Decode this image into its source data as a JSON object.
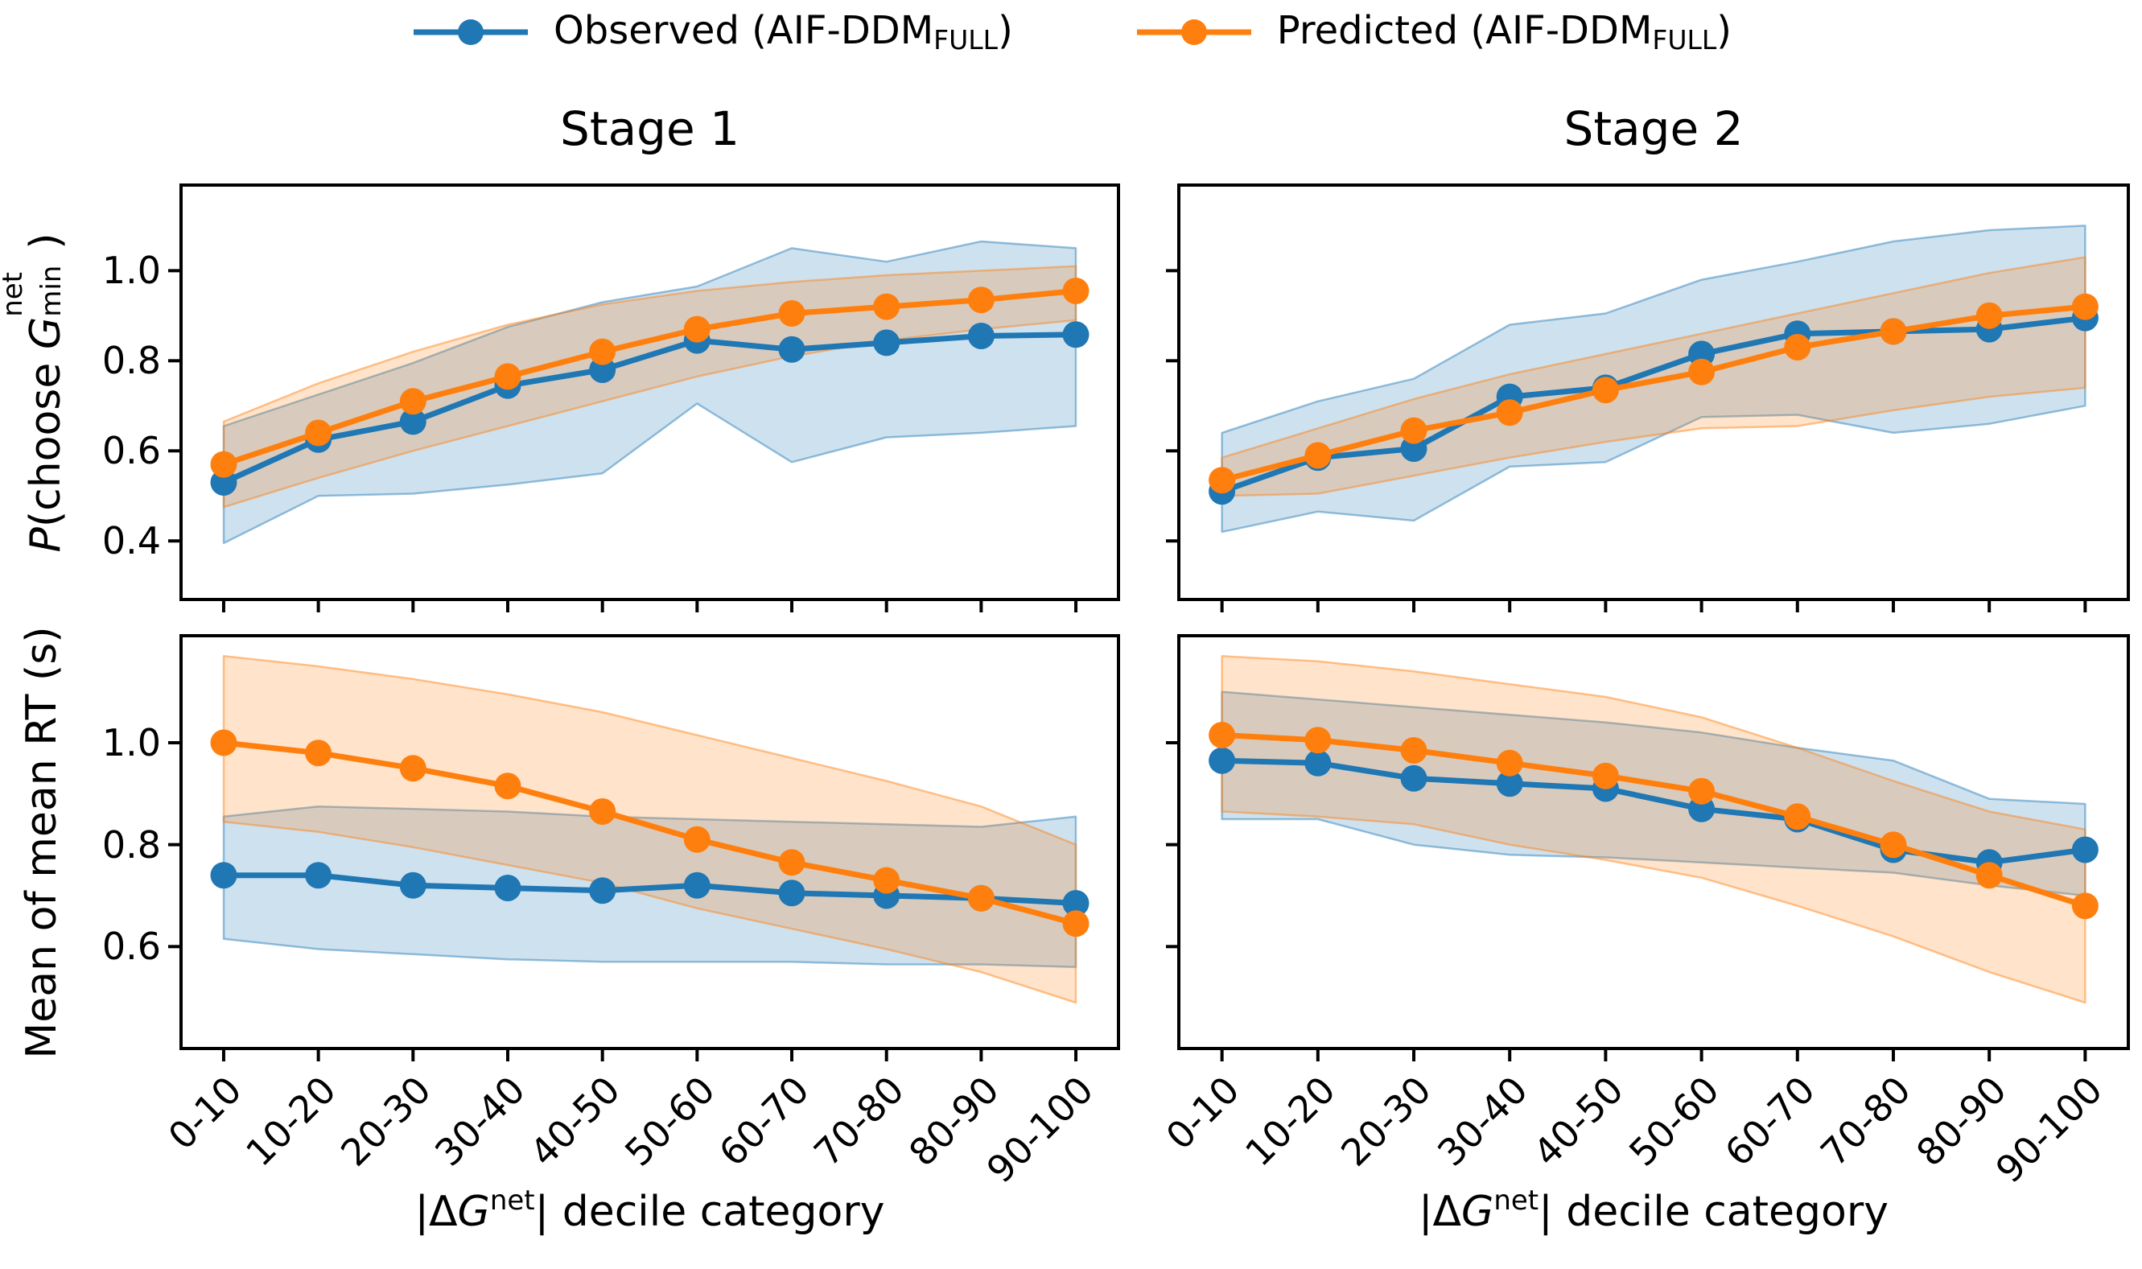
{
  "figure": {
    "background": "#ffffff"
  },
  "colors": {
    "observed": "#1f77b4",
    "predicted": "#ff7f0e",
    "band_fill_opacity": 0.22,
    "band_edge_opacity": 0.45,
    "axis": "#000000",
    "text": "#000000"
  },
  "legend": {
    "items": [
      {
        "name": "observed",
        "label_main": "Observed (AIF-DDM",
        "label_sub": "FULL",
        "label_end": ")"
      },
      {
        "name": "predicted",
        "label_main": "Predicted (AIF-DDM",
        "label_sub": "FULL",
        "label_end": ")"
      }
    ]
  },
  "labels": {
    "ylabel_top": {
      "p_var": "P",
      "mid": "(choose ",
      "g_var": "G",
      "sup": "net",
      "sub": "min",
      "end": ")"
    },
    "ylabel_bottom": "Mean of mean RT (s)",
    "xlabel": {
      "pre": "|Δ",
      "g_var": "G",
      "sup": "net",
      "post": "| decile category"
    }
  },
  "chart_data": [
    {
      "id": "s1top",
      "type": "line",
      "title": "Stage 1",
      "xlabel": "|ΔG^net| decile category",
      "ylabel": "P(choose G^net_min)",
      "categories": [
        "0-10",
        "10-20",
        "20-30",
        "30-40",
        "40-50",
        "50-60",
        "60-70",
        "70-80",
        "80-90",
        "90-100"
      ],
      "ylim": [
        0.27,
        1.19
      ],
      "yticks": [
        0.4,
        0.6,
        0.8,
        1.0
      ],
      "ytick_labels": [
        "0.4",
        "0.6",
        "0.8",
        "1.0"
      ],
      "show_ytick_labels": true,
      "show_xtick_labels": false,
      "grid": false,
      "series": [
        {
          "name": "Observed (AIF-DDM_FULL)",
          "color": "#1f77b4",
          "values": [
            0.53,
            0.625,
            0.665,
            0.745,
            0.78,
            0.845,
            0.825,
            0.84,
            0.855,
            0.858
          ],
          "band_lower": [
            0.395,
            0.5,
            0.505,
            0.525,
            0.55,
            0.705,
            0.575,
            0.63,
            0.64,
            0.655
          ],
          "band_upper": [
            0.655,
            0.725,
            0.795,
            0.875,
            0.93,
            0.965,
            1.05,
            1.02,
            1.065,
            1.05
          ]
        },
        {
          "name": "Predicted (AIF-DDM_FULL)",
          "color": "#ff7f0e",
          "values": [
            0.57,
            0.64,
            0.71,
            0.765,
            0.82,
            0.87,
            0.905,
            0.92,
            0.935,
            0.955
          ],
          "band_lower": [
            0.475,
            0.54,
            0.6,
            0.655,
            0.71,
            0.765,
            0.81,
            0.845,
            0.87,
            0.89
          ],
          "band_upper": [
            0.665,
            0.75,
            0.82,
            0.88,
            0.925,
            0.955,
            0.975,
            0.99,
            1.0,
            1.01
          ]
        }
      ]
    },
    {
      "id": "s2top",
      "type": "line",
      "title": "Stage 2",
      "xlabel": "|ΔG^net| decile category",
      "ylabel": "P(choose G^net_min)",
      "categories": [
        "0-10",
        "10-20",
        "20-30",
        "30-40",
        "40-50",
        "50-60",
        "60-70",
        "70-80",
        "80-90",
        "90-100"
      ],
      "ylim": [
        0.27,
        1.19
      ],
      "yticks": [
        0.4,
        0.6,
        0.8,
        1.0
      ],
      "ytick_labels": [],
      "show_ytick_labels": false,
      "show_xtick_labels": false,
      "grid": false,
      "series": [
        {
          "name": "Observed (AIF-DDM_FULL)",
          "color": "#1f77b4",
          "values": [
            0.51,
            0.585,
            0.605,
            0.72,
            0.74,
            0.815,
            0.86,
            0.865,
            0.87,
            0.895
          ],
          "band_lower": [
            0.42,
            0.465,
            0.445,
            0.565,
            0.575,
            0.675,
            0.68,
            0.64,
            0.66,
            0.7
          ],
          "band_upper": [
            0.64,
            0.71,
            0.76,
            0.88,
            0.905,
            0.98,
            1.02,
            1.065,
            1.09,
            1.1
          ]
        },
        {
          "name": "Predicted (AIF-DDM_FULL)",
          "color": "#ff7f0e",
          "values": [
            0.535,
            0.59,
            0.645,
            0.685,
            0.735,
            0.775,
            0.83,
            0.865,
            0.9,
            0.92
          ],
          "band_lower": [
            0.5,
            0.505,
            0.545,
            0.585,
            0.62,
            0.65,
            0.655,
            0.69,
            0.72,
            0.74
          ],
          "band_upper": [
            0.585,
            0.65,
            0.715,
            0.77,
            0.815,
            0.86,
            0.905,
            0.95,
            0.995,
            1.03
          ]
        }
      ]
    },
    {
      "id": "s1rt",
      "type": "line",
      "title": "Stage 1",
      "xlabel": "|ΔG^net| decile category",
      "ylabel": "Mean of mean RT (s)",
      "categories": [
        "0-10",
        "10-20",
        "20-30",
        "30-40",
        "40-50",
        "50-60",
        "60-70",
        "70-80",
        "80-90",
        "90-100"
      ],
      "ylim": [
        0.4,
        1.21
      ],
      "yticks": [
        0.6,
        0.8,
        1.0
      ],
      "ytick_labels": [
        "0.6",
        "0.8",
        "1.0"
      ],
      "show_ytick_labels": true,
      "show_xtick_labels": true,
      "grid": false,
      "series": [
        {
          "name": "Observed (AIF-DDM_FULL)",
          "color": "#1f77b4",
          "values": [
            0.74,
            0.74,
            0.72,
            0.715,
            0.71,
            0.72,
            0.705,
            0.7,
            0.695,
            0.685
          ],
          "band_lower": [
            0.615,
            0.595,
            0.585,
            0.575,
            0.57,
            0.57,
            0.57,
            0.565,
            0.565,
            0.56
          ],
          "band_upper": [
            0.855,
            0.875,
            0.87,
            0.865,
            0.855,
            0.85,
            0.845,
            0.84,
            0.835,
            0.855
          ]
        },
        {
          "name": "Predicted (AIF-DDM_FULL)",
          "color": "#ff7f0e",
          "values": [
            1.0,
            0.98,
            0.95,
            0.915,
            0.865,
            0.81,
            0.765,
            0.73,
            0.695,
            0.645
          ],
          "band_lower": [
            0.845,
            0.825,
            0.795,
            0.76,
            0.725,
            0.675,
            0.635,
            0.595,
            0.55,
            0.49
          ],
          "band_upper": [
            1.17,
            1.15,
            1.125,
            1.095,
            1.06,
            1.015,
            0.97,
            0.925,
            0.875,
            0.8
          ]
        }
      ]
    },
    {
      "id": "s2rt",
      "type": "line",
      "title": "Stage 2",
      "xlabel": "|ΔG^net| decile category",
      "ylabel": "Mean of mean RT (s)",
      "categories": [
        "0-10",
        "10-20",
        "20-30",
        "30-40",
        "40-50",
        "50-60",
        "60-70",
        "70-80",
        "80-90",
        "90-100"
      ],
      "ylim": [
        0.4,
        1.21
      ],
      "yticks": [
        0.6,
        0.8,
        1.0
      ],
      "ytick_labels": [],
      "show_ytick_labels": false,
      "show_xtick_labels": true,
      "grid": false,
      "series": [
        {
          "name": "Observed (AIF-DDM_FULL)",
          "color": "#1f77b4",
          "values": [
            0.965,
            0.96,
            0.93,
            0.92,
            0.91,
            0.87,
            0.85,
            0.79,
            0.765,
            0.79
          ],
          "band_lower": [
            0.85,
            0.85,
            0.8,
            0.78,
            0.775,
            0.765,
            0.755,
            0.745,
            0.72,
            0.7
          ],
          "band_upper": [
            1.1,
            1.085,
            1.07,
            1.055,
            1.04,
            1.02,
            0.99,
            0.965,
            0.89,
            0.88
          ]
        },
        {
          "name": "Predicted (AIF-DDM_FULL)",
          "color": "#ff7f0e",
          "values": [
            1.015,
            1.005,
            0.985,
            0.96,
            0.935,
            0.905,
            0.855,
            0.8,
            0.74,
            0.68
          ],
          "band_lower": [
            0.865,
            0.855,
            0.84,
            0.8,
            0.77,
            0.735,
            0.68,
            0.62,
            0.55,
            0.49
          ],
          "band_upper": [
            1.17,
            1.16,
            1.14,
            1.115,
            1.09,
            1.05,
            0.99,
            0.925,
            0.865,
            0.83
          ]
        }
      ]
    }
  ]
}
